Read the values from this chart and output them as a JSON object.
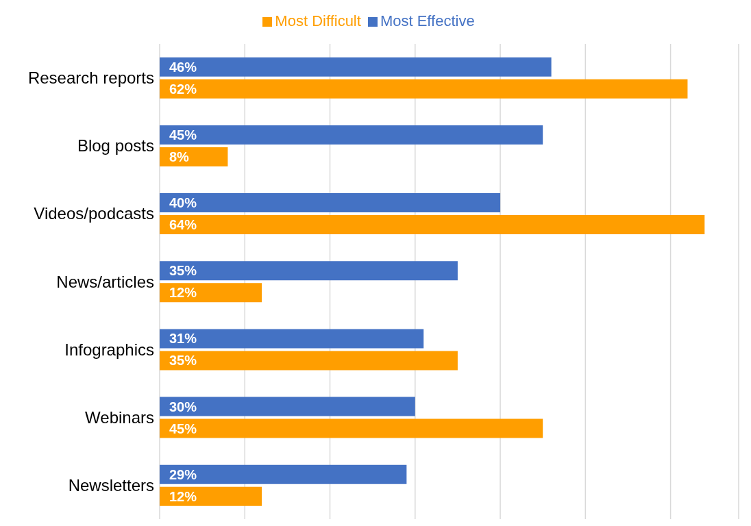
{
  "chart_data": {
    "type": "bar",
    "orientation": "horizontal",
    "categories": [
      "Research reports",
      "Blog posts",
      "Videos/podcasts",
      "News/articles",
      "Infographics",
      "Webinars",
      "Newsletters"
    ],
    "series": [
      {
        "name": "Most Effective",
        "color": "#4472c4",
        "values": [
          46,
          45,
          40,
          35,
          31,
          30,
          29
        ],
        "value_labels": [
          "46%",
          "45%",
          "40%",
          "35%",
          "31%",
          "30%",
          "29%"
        ]
      },
      {
        "name": "Most Difficult",
        "color": "#ff9e00",
        "values": [
          62,
          8,
          64,
          12,
          35,
          45,
          12
        ],
        "value_labels": [
          "62%",
          "8%",
          "64%",
          "12%",
          "35%",
          "45%",
          "12%"
        ]
      }
    ],
    "xlim": [
      0,
      68
    ],
    "xticks": [
      {
        "value": 0,
        "label": null
      },
      {
        "value": 10,
        "label": null
      },
      {
        "value": 20,
        "label": null
      },
      {
        "value": 30,
        "label": null
      },
      {
        "value": 40,
        "label": null
      },
      {
        "value": 50,
        "label": null
      },
      {
        "value": 60,
        "label": null
      }
    ],
    "tick_labels": "y",
    "grid": "x",
    "legend": "top"
  }
}
